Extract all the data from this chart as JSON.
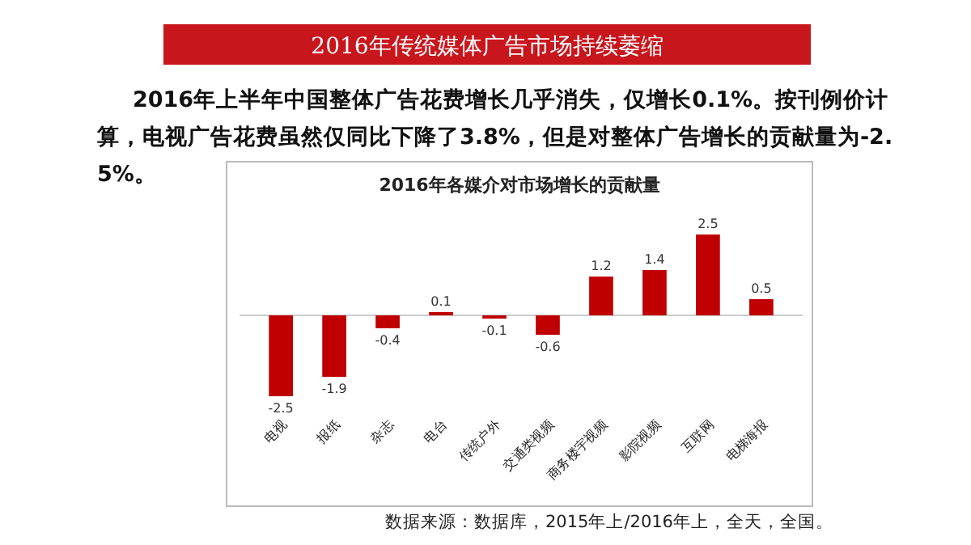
{
  "chart_data": {
    "type": "bar",
    "title": "2016年传统媒体广告市场持续萎缩",
    "subtitle": "2016年上半年中国整体广告花费增长几乎消失，仅增长0.1%。按刊例价计算，电视广告花费虽然仅同比下降了3.8%，但是对整体广告增长的贡献量为-2.5%。",
    "annotations": [
      "2016年各媒介对市场增长的贡献量",
      "数据来源：数据库，2015年上/2016年上，全天，全国。"
    ],
    "categories": [
      "电视",
      "报纸",
      "杂志",
      "电台",
      "传统户外",
      "交通类视频",
      "商务楼宇视频",
      "影院视频",
      "互联网",
      "电梯海报"
    ],
    "values": [
      -2.5,
      -1.9,
      -0.4,
      0.1,
      -0.1,
      -0.6,
      1.2,
      1.4,
      2.5,
      0.5
    ],
    "color": "#c00000",
    "data_labels": true
  }
}
